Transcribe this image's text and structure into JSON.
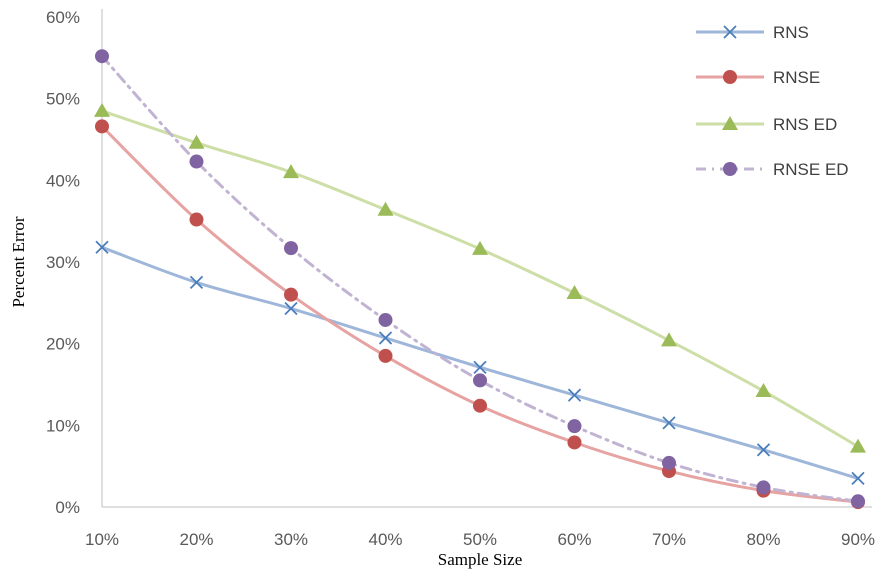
{
  "chart_data": {
    "type": "line",
    "title": "",
    "xlabel": "Sample Size",
    "ylabel": "Percent Error",
    "categories": [
      "10%",
      "20%",
      "30%",
      "40%",
      "50%",
      "60%",
      "70%",
      "80%",
      "90%"
    ],
    "y_ticks": [
      "0%",
      "10%",
      "20%",
      "30%",
      "40%",
      "50%",
      "60%"
    ],
    "ylim": [
      0,
      60
    ],
    "grid": false,
    "legend_position": "top-right",
    "series": [
      {
        "name": "RNS",
        "color": "#9DB6D9",
        "marker": "x",
        "marker_color": "#4A7EBB",
        "dash": "solid",
        "values": [
          31.8,
          27.5,
          24.3,
          20.7,
          17.1,
          13.7,
          10.3,
          7.0,
          3.5
        ]
      },
      {
        "name": "RNSE",
        "color": "#E6A3A2",
        "marker": "circle",
        "marker_color": "#C0504D",
        "dash": "solid",
        "values": [
          46.6,
          35.2,
          26.0,
          18.5,
          12.4,
          7.9,
          4.4,
          2.0,
          0.6
        ]
      },
      {
        "name": "RNS ED",
        "color": "#CDDEA7",
        "marker": "triangle",
        "marker_color": "#9BBB59",
        "dash": "solid",
        "values": [
          48.5,
          44.6,
          41.0,
          36.4,
          31.6,
          26.2,
          20.4,
          14.2,
          7.4
        ]
      },
      {
        "name": "RNSE ED",
        "color": "#C1B3D2",
        "marker": "circle",
        "marker_color": "#8064A2",
        "dash": "dashdot",
        "values": [
          55.2,
          42.3,
          31.7,
          22.9,
          15.5,
          9.9,
          5.4,
          2.4,
          0.7
        ]
      }
    ]
  }
}
